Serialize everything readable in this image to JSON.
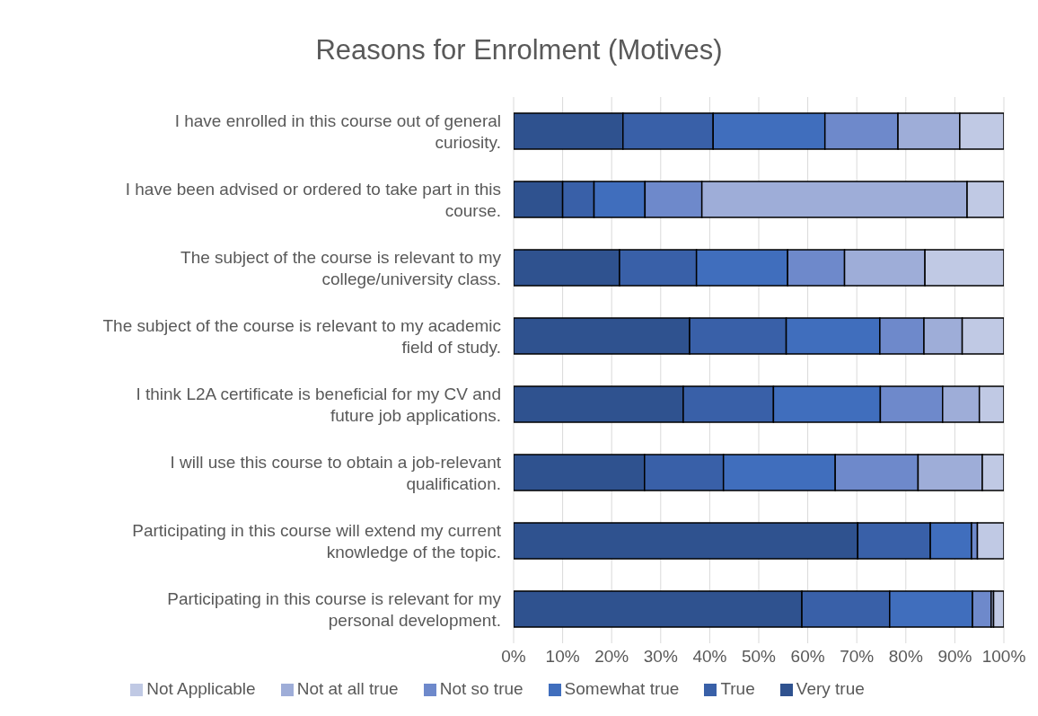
{
  "chart_data": {
    "type": "bar",
    "orientation": "horizontal",
    "stacked": true,
    "title": "Reasons for Enrolment (Motives)",
    "categories": [
      "I have enrolled in this course out of general curiosity.",
      "I have been advised or ordered to take part in this course.",
      "The subject of the course is relevant to my college/university class.",
      "The subject of the course is relevant to my academic field of study.",
      "I think L2A certificate is beneficial for my CV and future job applications.",
      "I will use this course to obtain a job-relevant qualification.",
      "Participating in this course will extend my current knowledge of the topic.",
      "Participating in this course is relevant for my personal development."
    ],
    "series": [
      {
        "name": "Very true",
        "color": "#2f528f",
        "values": [
          22.3,
          10.0,
          21.6,
          35.9,
          34.6,
          26.7,
          70.2,
          58.8
        ]
      },
      {
        "name": "True",
        "color": "#3960a8",
        "values": [
          18.4,
          6.4,
          15.7,
          19.7,
          18.4,
          16.1,
          14.8,
          17.9
        ]
      },
      {
        "name": "Somewhat true",
        "color": "#406ebd",
        "values": [
          22.8,
          10.4,
          18.6,
          19.1,
          21.8,
          22.8,
          8.4,
          16.9
        ]
      },
      {
        "name": "Not so true",
        "color": "#6e89cb",
        "values": [
          14.9,
          11.6,
          11.6,
          9.0,
          12.7,
          16.9,
          1.2,
          3.8
        ]
      },
      {
        "name": "Not at all true",
        "color": "#9eadd8",
        "values": [
          12.6,
          54.1,
          16.4,
          7.8,
          7.5,
          13.1,
          0,
          0.5
        ]
      },
      {
        "name": "Not Applicable",
        "color": "#c0c9e4",
        "values": [
          9.0,
          7.5,
          16.1,
          8.5,
          5.0,
          4.4,
          5.4,
          2.1
        ]
      }
    ],
    "xlim": [
      0,
      100
    ],
    "xticks": [
      {
        "value": 0,
        "label": "0%"
      },
      {
        "value": 10,
        "label": "10%"
      },
      {
        "value": 20,
        "label": "20%"
      },
      {
        "value": 30,
        "label": "30%"
      },
      {
        "value": 40,
        "label": "40%"
      },
      {
        "value": 50,
        "label": "50%"
      },
      {
        "value": 60,
        "label": "60%"
      },
      {
        "value": 70,
        "label": "70%"
      },
      {
        "value": 80,
        "label": "80%"
      },
      {
        "value": 90,
        "label": "90%"
      },
      {
        "value": 100,
        "label": "100%"
      }
    ],
    "grid": "x",
    "legend": "bottom"
  }
}
